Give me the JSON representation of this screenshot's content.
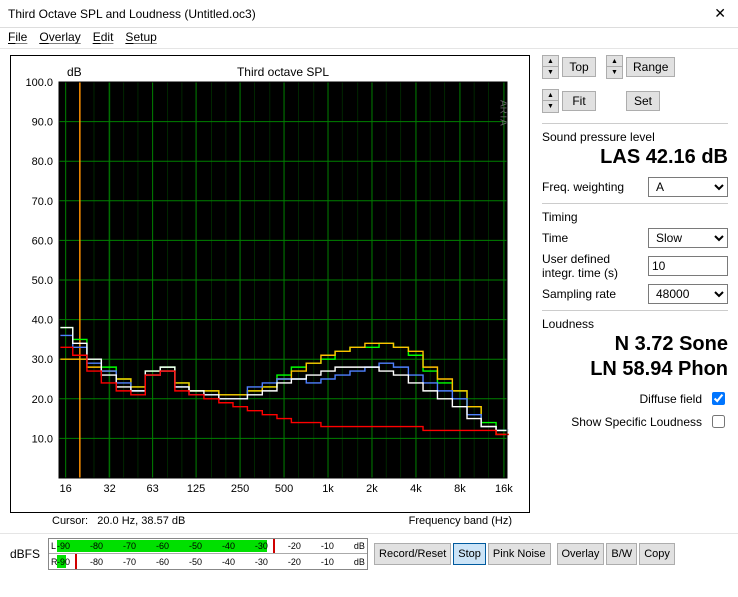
{
  "window": {
    "title": "Third Octave SPL and Loudness (Untitled.oc3)"
  },
  "menu": {
    "file": "File",
    "overlay": "Overlay",
    "edit": "Edit",
    "setup": "Setup"
  },
  "chart": {
    "type": "third-octave-step",
    "title": "Third octave SPL",
    "y_label": "dB",
    "x_label": "Frequency band (Hz)",
    "watermark": "ARTA",
    "background": "#000000",
    "grid_color": "#008000",
    "y_min": 0,
    "y_max": 100,
    "y_step": 10,
    "x_ticks": [
      16,
      32,
      63,
      125,
      250,
      500,
      "1k",
      "2k",
      "4k",
      "8k",
      "16k"
    ],
    "x_bands_hz": [
      16,
      20,
      25,
      31.5,
      40,
      50,
      63,
      80,
      100,
      125,
      160,
      200,
      250,
      315,
      400,
      500,
      630,
      800,
      1000,
      1250,
      1600,
      2000,
      2500,
      3150,
      4000,
      5000,
      6300,
      8000,
      10000,
      12500,
      16000
    ],
    "series": [
      {
        "name": "green",
        "color": "#00ff00",
        "values": [
          38,
          35,
          30,
          28,
          25,
          23,
          27,
          28,
          24,
          22,
          22,
          21,
          21,
          22,
          23,
          26,
          28,
          29,
          30,
          32,
          33,
          33,
          34,
          33,
          31,
          27,
          24,
          22,
          18,
          14,
          12
        ]
      },
      {
        "name": "yellow",
        "color": "#ffc000",
        "values": [
          30,
          30,
          28,
          27,
          25,
          23,
          26,
          27,
          24,
          22,
          22,
          21,
          21,
          22,
          23,
          25,
          27,
          29,
          31,
          32,
          33,
          34,
          34,
          33,
          32,
          28,
          25,
          22,
          18,
          13,
          11
        ]
      },
      {
        "name": "blue",
        "color": "#4f81ff",
        "values": [
          36,
          33,
          29,
          27,
          24,
          22,
          26,
          27,
          23,
          21,
          21,
          20,
          20,
          23,
          24,
          25,
          25,
          24,
          25,
          26,
          27,
          28,
          29,
          28,
          26,
          24,
          22,
          20,
          16,
          13,
          12
        ]
      },
      {
        "name": "white",
        "color": "#ffffff",
        "values": [
          38,
          34,
          30,
          26,
          23,
          22,
          27,
          28,
          23,
          22,
          21,
          20,
          20,
          21,
          22,
          24,
          25,
          26,
          27,
          28,
          28,
          28,
          27,
          26,
          24,
          22,
          20,
          18,
          15,
          13,
          12
        ]
      },
      {
        "name": "red",
        "color": "#ff0000",
        "values": [
          33,
          31,
          27,
          24,
          22,
          21,
          26,
          27,
          22,
          21,
          20,
          19,
          18,
          17,
          16,
          15,
          14,
          14,
          13,
          13,
          13,
          13,
          13,
          13,
          13,
          12,
          12,
          12,
          12,
          12,
          11
        ]
      }
    ],
    "cursor": {
      "freq_hz": "20.0",
      "db": "38.57",
      "label_prefix": "Cursor:",
      "unit1": "Hz",
      "unit2": "dB"
    }
  },
  "side": {
    "top": "Top",
    "fit": "Fit",
    "range": "Range",
    "set": "Set",
    "spl_label": "Sound pressure level",
    "spl_value": "LAS 42.16 dB",
    "freq_weighting_label": "Freq. weighting",
    "freq_weighting_value": "A",
    "timing_label": "Timing",
    "time_label": "Time",
    "time_value": "Slow",
    "integ_label": "User defined integr. time (s)",
    "integ_value": "10",
    "sampling_label": "Sampling rate",
    "sampling_value": "48000",
    "loudness_label": "Loudness",
    "loudness_sone": "N 3.72 Sone",
    "loudness_phon": "LN 58.94 Phon",
    "diffuse_label": "Diffuse field",
    "diffuse_checked": true,
    "ssl_label": "Show Specific Loudness",
    "ssl_checked": false
  },
  "bottom": {
    "dbfs_label": "dBFS",
    "meter": {
      "L": {
        "label": "L",
        "fill_pct": 70,
        "red_at_pct": 72,
        "tick_labels": [
          "-90",
          "-80",
          "-70",
          "-60",
          "-50",
          "-40",
          "-30",
          "-20",
          "-10",
          "dB"
        ]
      },
      "R": {
        "label": "R",
        "fill_pct": 3,
        "red_at_pct": 6,
        "tick_labels": [
          "-90",
          "-80",
          "-70",
          "-60",
          "-50",
          "-40",
          "-30",
          "-20",
          "-10",
          "dB"
        ]
      }
    },
    "buttons": {
      "record": "Record/Reset",
      "stop": "Stop",
      "pink": "Pink Noise",
      "overlay": "Overlay",
      "bw": "B/W",
      "copy": "Copy"
    }
  }
}
